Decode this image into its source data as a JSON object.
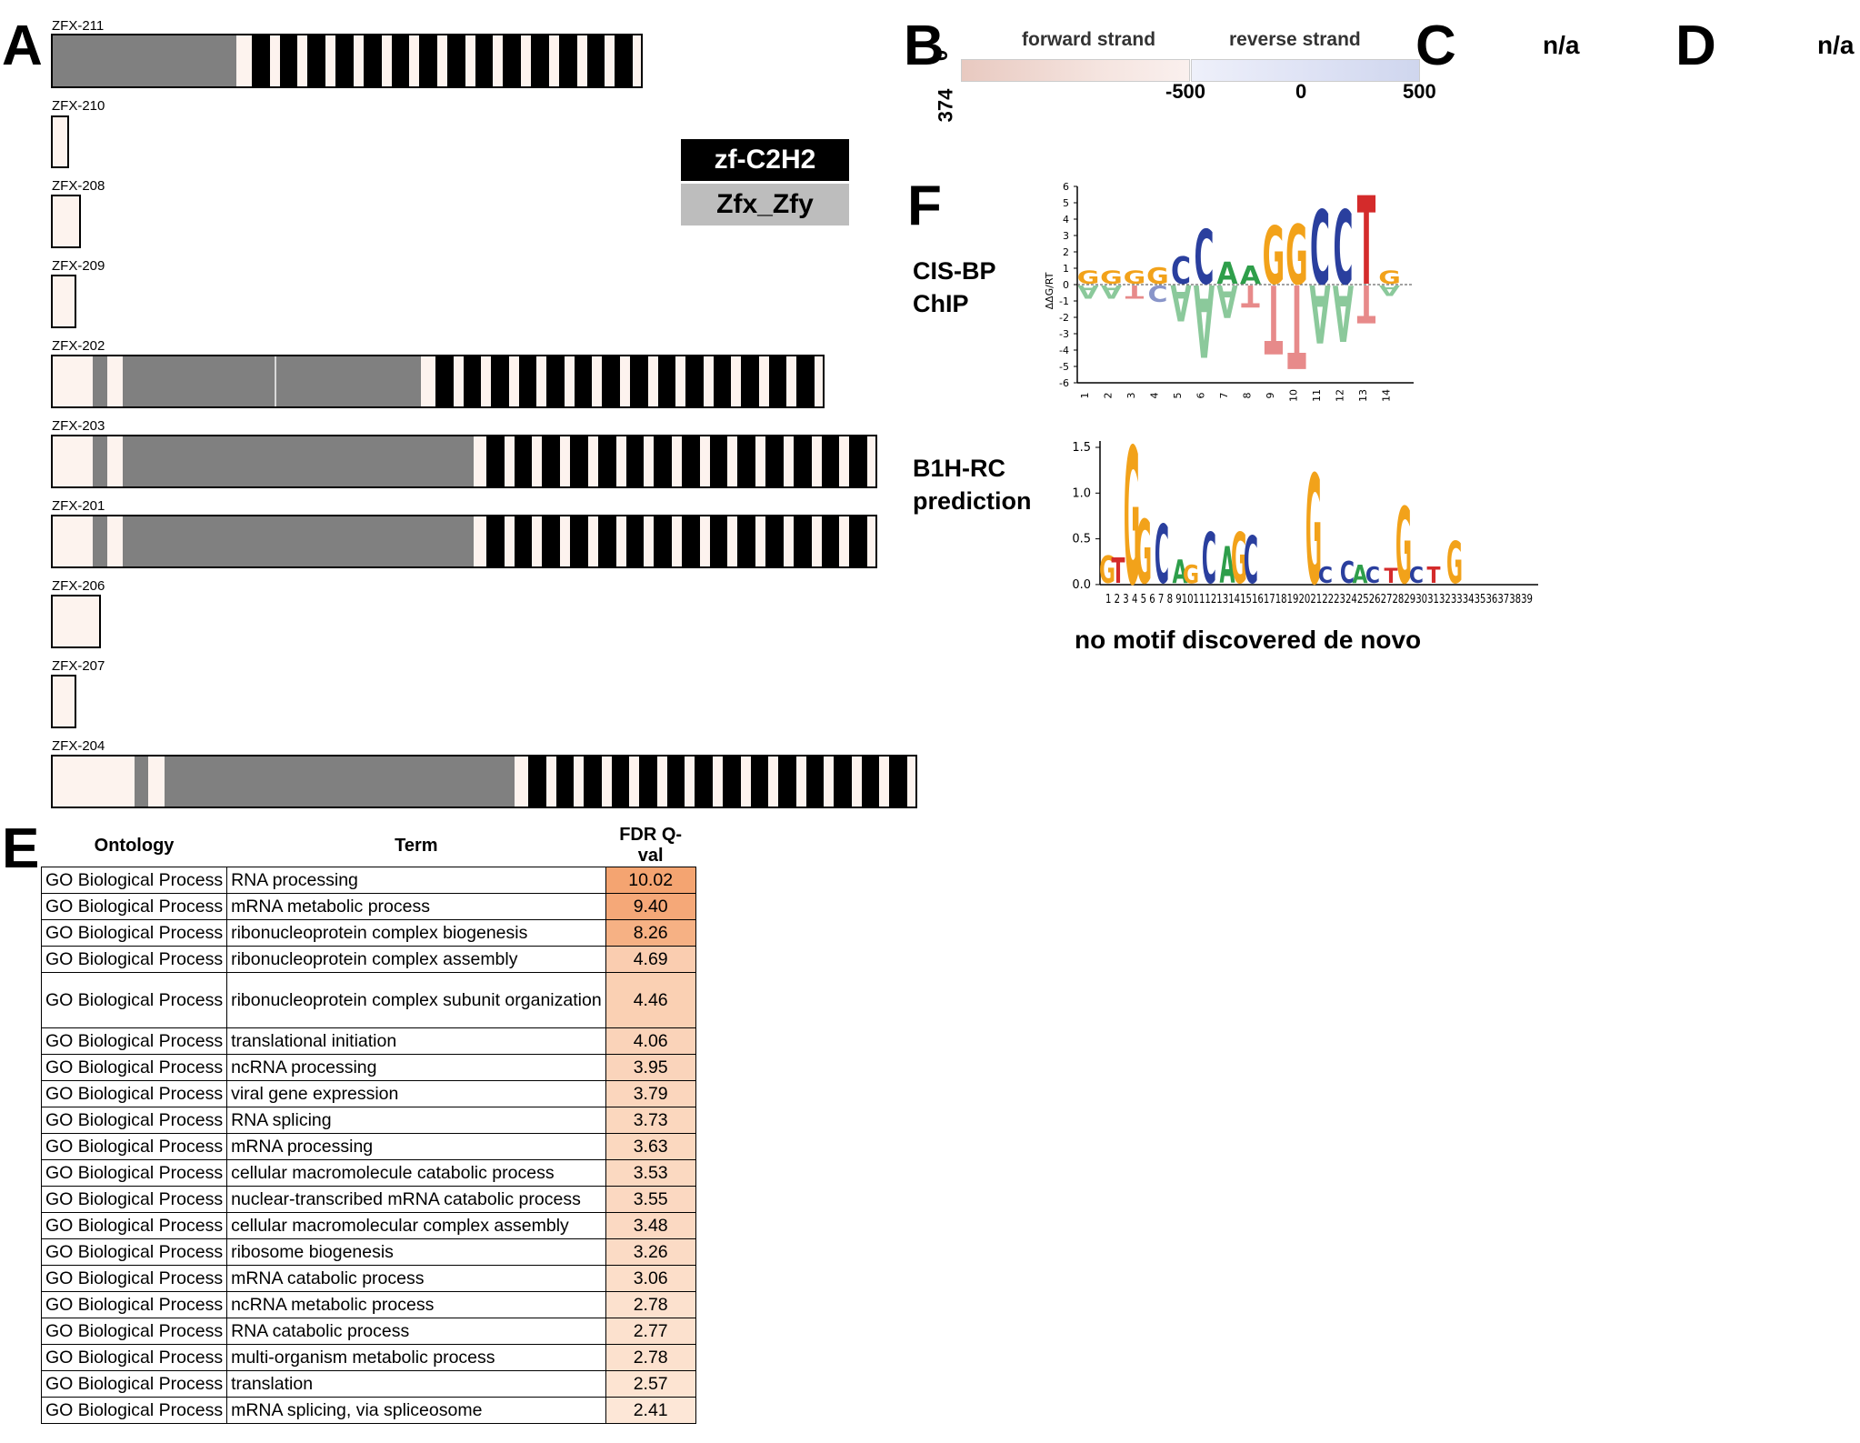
{
  "panels": {
    "A": "A",
    "B": "B",
    "C": "C",
    "D": "D",
    "E": "E",
    "F": "F"
  },
  "isoforms": [
    {
      "name": "ZFX-211"
    },
    {
      "name": "ZFX-210"
    },
    {
      "name": "ZFX-208"
    },
    {
      "name": "ZFX-209"
    },
    {
      "name": "ZFX-202"
    },
    {
      "name": "ZFX-203"
    },
    {
      "name": "ZFX-201"
    },
    {
      "name": "ZFX-206"
    },
    {
      "name": "ZFX-207"
    },
    {
      "name": "ZFX-204"
    }
  ],
  "domain_legend": {
    "zf": "zf-C2H2",
    "zfx": "Zfx_Zfy",
    "colors": {
      "zf": "#000000",
      "zfx": "#bdbdbd",
      "utr": "#fdf3ee",
      "domain": "#808080"
    }
  },
  "panel_b": {
    "forward_label": "forward strand",
    "reverse_label": "reverse strand",
    "y_top": "0",
    "y_bottom": "374",
    "x_left": "-500",
    "x_mid": "0",
    "x_right": "500",
    "colors": {
      "forward": "#c98a78",
      "reverse": "#8a9bc9"
    }
  },
  "panel_c": {
    "text": "n/a"
  },
  "panel_d": {
    "text": "n/a"
  },
  "panel_f": {
    "cisbp_label_1": "CIS-BP",
    "cisbp_label_2": "ChIP",
    "b1h_label_1": "B1H-RC",
    "b1h_label_2": "prediction",
    "no_motif": "no motif discovered de novo",
    "cisbp_ylabel": "ΔΔG/RT",
    "cisbp_yticks": [
      "6",
      "5",
      "4",
      "3",
      "2",
      "1",
      "0",
      "-1",
      "-2",
      "-3",
      "-4",
      "-5",
      "-6"
    ],
    "cisbp_xticks": [
      "1",
      "2",
      "3",
      "4",
      "5",
      "6",
      "7",
      "8",
      "9",
      "10",
      "11",
      "12",
      "13",
      "14"
    ],
    "cisbp_top": [
      "G",
      "G",
      "G",
      "G",
      "C",
      "C",
      "A",
      "A",
      "G",
      "G",
      "C",
      "C",
      "T",
      "G"
    ],
    "cisbp_bottom": [
      "A",
      "A",
      "T",
      "C",
      "A",
      "A",
      "A",
      "T",
      "T",
      "T",
      "A",
      "A",
      "T",
      "A"
    ],
    "b1h_yticks": [
      "1.5",
      "1.0",
      "0.5",
      "0.0"
    ],
    "b1h_xticks": "1 2 3 4 5 6 7 8 9101112131415161718192021222324252627282930313233343536373839",
    "b1h_letters": [
      "G",
      "T",
      "G",
      "G",
      "C",
      "A",
      "G",
      "C",
      "A",
      "G",
      "C",
      "G",
      "C",
      "C",
      "A",
      "C",
      "T",
      "G",
      "C",
      "T",
      "G"
    ]
  },
  "chart_data": {
    "type": "table",
    "columns": [
      "Ontology",
      "Term",
      "FDR Q-val"
    ],
    "rows": [
      [
        "GO Biological Process",
        "RNA processing",
        "10.02"
      ],
      [
        "GO Biological Process",
        "mRNA metabolic process",
        "9.40"
      ],
      [
        "GO Biological Process",
        "ribonucleoprotein complex biogenesis",
        "8.26"
      ],
      [
        "GO Biological Process",
        "ribonucleoprotein complex assembly",
        "4.69"
      ],
      [
        "GO Biological Process",
        "ribonucleoprotein complex subunit organization",
        "4.46"
      ],
      [
        "GO Biological Process",
        "translational initiation",
        "4.06"
      ],
      [
        "GO Biological Process",
        "ncRNA processing",
        "3.95"
      ],
      [
        "GO Biological Process",
        "viral gene expression",
        "3.79"
      ],
      [
        "GO Biological Process",
        "RNA splicing",
        "3.73"
      ],
      [
        "GO Biological Process",
        "mRNA processing",
        "3.63"
      ],
      [
        "GO Biological Process",
        "cellular macromolecule catabolic process",
        "3.53"
      ],
      [
        "GO Biological Process",
        "nuclear-transcribed mRNA catabolic process",
        "3.55"
      ],
      [
        "GO Biological Process",
        "cellular macromolecular complex assembly",
        "3.48"
      ],
      [
        "GO Biological Process",
        "ribosome biogenesis",
        "3.26"
      ],
      [
        "GO Biological Process",
        "mRNA catabolic process",
        "3.06"
      ],
      [
        "GO Biological Process",
        "ncRNA metabolic process",
        "2.78"
      ],
      [
        "GO Biological Process",
        "RNA catabolic process",
        "2.77"
      ],
      [
        "GO Biological Process",
        "multi-organism metabolic process",
        "2.78"
      ],
      [
        "GO Biological Process",
        "translation",
        "2.57"
      ],
      [
        "GO Biological Process",
        "mRNA splicing, via spliceosome",
        "2.41"
      ]
    ]
  }
}
